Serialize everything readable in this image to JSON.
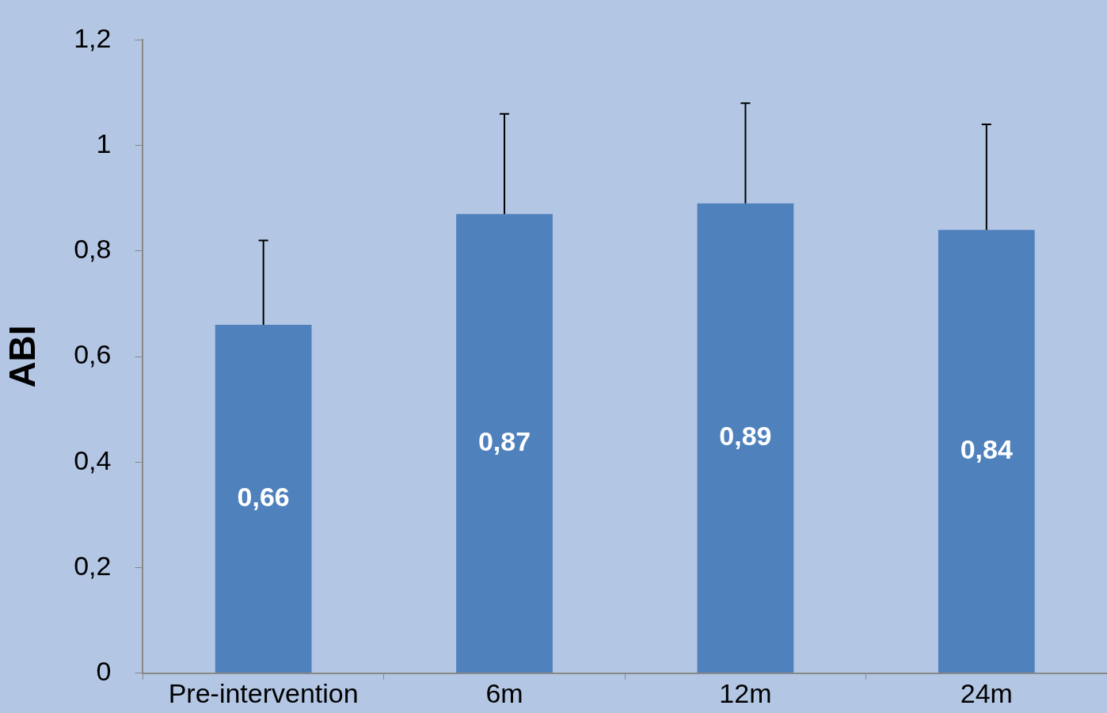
{
  "chart_data": {
    "type": "bar",
    "ylabel": "ABI",
    "categories": [
      "Pre-intervention",
      "6m",
      "12m",
      "24m"
    ],
    "values": [
      0.66,
      0.87,
      0.89,
      0.84
    ],
    "color": "#4f81bd",
    "errors": [
      [
        0.66,
        0.82
      ],
      [
        0.87,
        1.06
      ],
      [
        0.89,
        1.08
      ],
      [
        0.84,
        1.04
      ]
    ],
    "value_labels": [
      "0,66",
      "0,87",
      "0,89",
      "0,84"
    ],
    "ylim": [
      0,
      1.2
    ],
    "yticks": [
      {
        "value": 0,
        "label": "0"
      },
      {
        "value": 0.2,
        "label": "0,2"
      },
      {
        "value": 0.4,
        "label": "0,4"
      },
      {
        "value": 0.6,
        "label": "0,6"
      },
      {
        "value": 0.8,
        "label": "0,8"
      },
      {
        "value": 1,
        "label": "1"
      },
      {
        "value": 1.2,
        "label": "1,2"
      }
    ],
    "grid": false,
    "legend": false
  }
}
